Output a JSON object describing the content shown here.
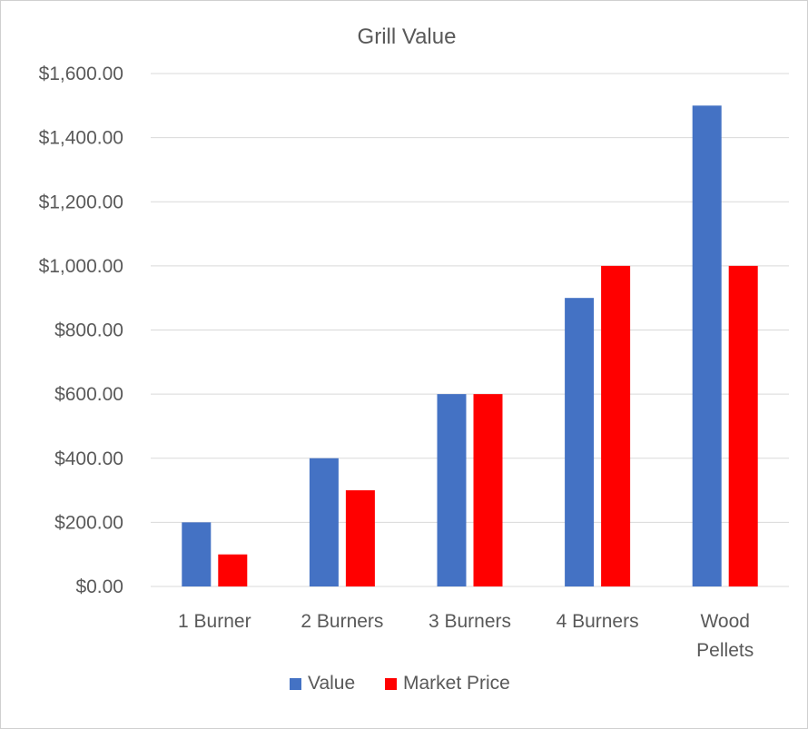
{
  "chart_data": {
    "type": "bar",
    "title": "Grill Value",
    "xlabel": "",
    "ylabel": "",
    "categories": [
      [
        "1 Burner"
      ],
      [
        "2 Burners"
      ],
      [
        "3 Burners"
      ],
      [
        "4 Burners"
      ],
      [
        "Wood",
        "Pellets"
      ]
    ],
    "series": [
      {
        "name": "Value",
        "color": "#4472c4",
        "values": [
          200,
          400,
          600,
          900,
          1500
        ]
      },
      {
        "name": "Market Price",
        "color": "#ff0000",
        "values": [
          100,
          300,
          600,
          1000,
          1000
        ]
      }
    ],
    "ylim": [
      0,
      1600
    ],
    "ytick_step": 200,
    "ytick_labels": [
      "$0.00",
      "$200.00",
      "$400.00",
      "$600.00",
      "$800.00",
      "$1,000.00",
      "$1,200.00",
      "$1,400.00",
      "$1,600.00"
    ],
    "grid": true,
    "gridline_color": "#d9d9d9",
    "legend_position": "bottom"
  }
}
